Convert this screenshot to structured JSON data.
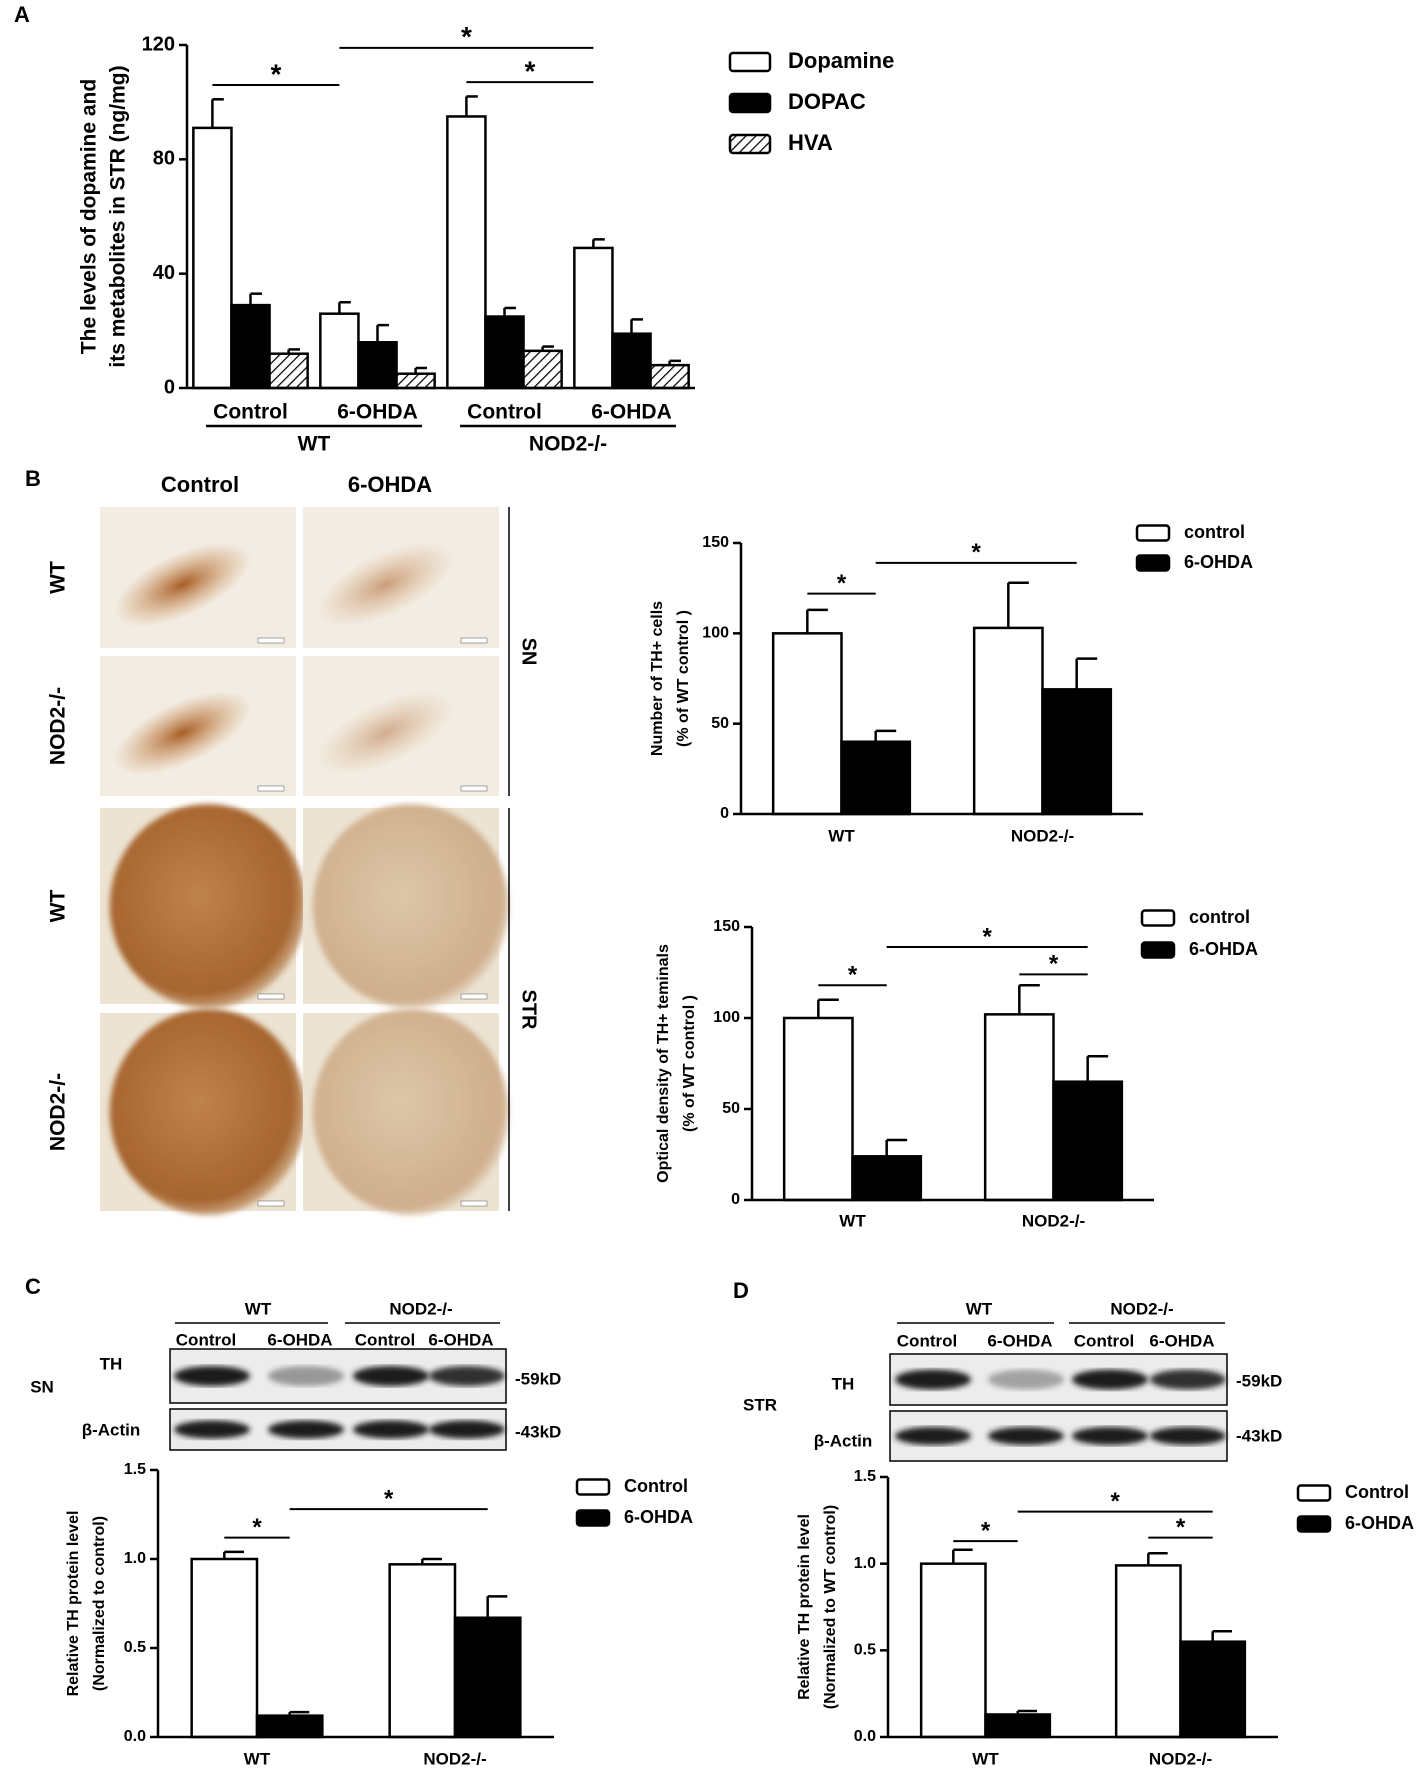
{
  "panel_labels": [
    "A",
    "B",
    "C",
    "D"
  ],
  "chart_data": [
    {
      "type": "bar",
      "y_label": [
        "The levels of dopamine and",
        "its metabolites in STR (ng/mg)"
      ],
      "categories": [
        "Control",
        "6-OHDA",
        "Control",
        "6-OHDA"
      ],
      "groups": [
        "WT",
        "NOD2-/-"
      ],
      "series": [
        {
          "name": "Dopamine",
          "color": "#ffffff",
          "values": [
            91,
            26,
            95,
            49
          ],
          "errors": [
            10,
            4,
            7,
            3
          ]
        },
        {
          "name": "DOPAC",
          "color": "#000000",
          "values": [
            29,
            16,
            25,
            19
          ],
          "errors": [
            4,
            6,
            3,
            5
          ]
        },
        {
          "name": "HVA",
          "color": "#ffffff",
          "hatch": true,
          "values": [
            12,
            5,
            13,
            8
          ],
          "errors": [
            1.5,
            2,
            1.5,
            1.5
          ]
        }
      ],
      "ylim": [
        0,
        120
      ],
      "yticks": [
        0,
        40,
        80,
        120
      ],
      "annotations": [
        "*",
        "*",
        "*"
      ]
    },
    {
      "type": "bar",
      "y_label": [
        "Number of TH+ cells",
        "(% of WT control )"
      ],
      "categories": [
        "WT",
        "NOD2-/-"
      ],
      "series": [
        {
          "name": "control",
          "color": "#ffffff",
          "values": [
            100,
            103
          ],
          "errors": [
            13,
            25
          ]
        },
        {
          "name": "6-OHDA",
          "color": "#000000",
          "values": [
            40,
            69
          ],
          "errors": [
            6,
            17
          ]
        }
      ],
      "ylim": [
        0,
        150
      ],
      "yticks": [
        0,
        50,
        100,
        150
      ],
      "annotations": [
        "*",
        "*"
      ]
    },
    {
      "type": "bar",
      "y_label": [
        "Optical density of TH+ teminals",
        "(% of WT control )"
      ],
      "categories": [
        "WT",
        "NOD2-/-"
      ],
      "series": [
        {
          "name": "control",
          "color": "#ffffff",
          "values": [
            100,
            102
          ],
          "errors": [
            10,
            16
          ]
        },
        {
          "name": "6-OHDA",
          "color": "#000000",
          "values": [
            24,
            65
          ],
          "errors": [
            9,
            14
          ]
        }
      ],
      "ylim": [
        0,
        150
      ],
      "yticks": [
        0,
        50,
        100,
        150
      ],
      "annotations": [
        "*",
        "*",
        "*"
      ]
    },
    {
      "type": "bar",
      "y_label": [
        "Relative TH protein level",
        "(Normalized to control)"
      ],
      "categories": [
        "WT",
        "NOD2-/-"
      ],
      "series": [
        {
          "name": "Control",
          "color": "#ffffff",
          "values": [
            1.0,
            0.97
          ],
          "errors": [
            0.04,
            0.03
          ]
        },
        {
          "name": "6-OHDA",
          "color": "#000000",
          "values": [
            0.12,
            0.67
          ],
          "errors": [
            0.02,
            0.12
          ]
        }
      ],
      "ylim": [
        0,
        1.5
      ],
      "yticks": [
        {
          "value": 0,
          "label": "0.0"
        },
        0.5,
        {
          "value": 1,
          "label": "1.0"
        },
        1.5
      ],
      "annotations": [
        "*",
        "*"
      ]
    },
    {
      "type": "bar",
      "y_label": [
        "Relative TH protein level",
        "(Normalized to WT control)"
      ],
      "categories": [
        "WT",
        "NOD2-/-"
      ],
      "series": [
        {
          "name": "Control",
          "color": "#ffffff",
          "values": [
            1.0,
            0.99
          ],
          "errors": [
            0.08,
            0.07
          ]
        },
        {
          "name": "6-OHDA",
          "color": "#000000",
          "values": [
            0.13,
            0.55
          ],
          "errors": [
            0.02,
            0.06
          ]
        }
      ],
      "ylim": [
        0,
        1.5
      ],
      "yticks": [
        {
          "value": 0,
          "label": "0.0"
        },
        0.5,
        {
          "value": 1,
          "label": "1.0"
        },
        1.5
      ],
      "annotations": [
        "*",
        "*",
        "*"
      ]
    }
  ],
  "micrographs": {
    "columns": [
      "Control",
      "6-OHDA"
    ],
    "rows": [
      "WT",
      "NOD2-/-",
      "WT",
      "NOD2-/-"
    ],
    "regions": [
      "SN",
      "STR"
    ]
  },
  "blots": [
    {
      "region": "SN",
      "groups": [
        "WT",
        "NOD2-/-"
      ],
      "lanes": [
        "Control",
        "6-OHDA",
        "Control",
        "6-OHDA"
      ],
      "bands": [
        "TH",
        "β-Actin"
      ],
      "sizes": [
        "-59kD",
        "-43kD"
      ]
    },
    {
      "region": "STR",
      "groups": [
        "WT",
        "NOD2-/-"
      ],
      "lanes": [
        "Control",
        "6-OHDA",
        "Control",
        "6-OHDA"
      ],
      "bands": [
        "TH",
        "β-Actin"
      ],
      "sizes": [
        "-59kD",
        "-43kD"
      ]
    }
  ]
}
